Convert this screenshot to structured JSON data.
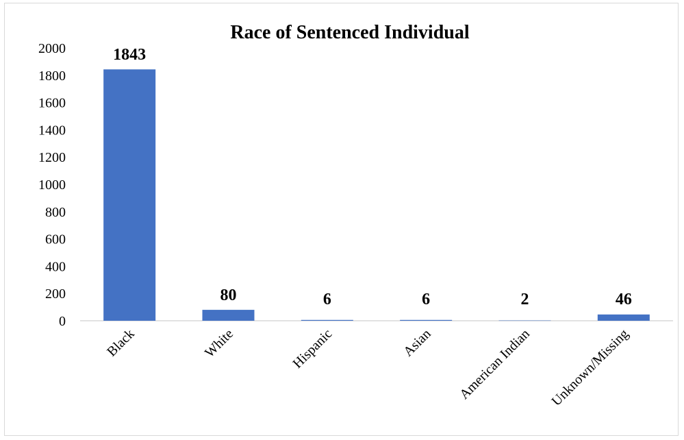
{
  "chart_data": {
    "type": "bar",
    "title": "Race of Sentenced Individual",
    "xlabel": "",
    "ylabel": "",
    "categories": [
      "Black",
      "White",
      "Hispanic",
      "Asian",
      "American Indian",
      "Unknown/Missing"
    ],
    "values": [
      1843,
      80,
      6,
      6,
      2,
      46
    ],
    "data_labels": [
      "1843",
      "80",
      "6",
      "6",
      "2",
      "46"
    ],
    "ylim": [
      0,
      2000
    ],
    "yticks": [
      "0",
      "200",
      "400",
      "600",
      "800",
      "1000",
      "1200",
      "1400",
      "1600",
      "1800",
      "2000"
    ],
    "grid": false,
    "legend": "none",
    "colors": {
      "bar": "#4472C4",
      "axis": "#d9d9d9"
    }
  }
}
